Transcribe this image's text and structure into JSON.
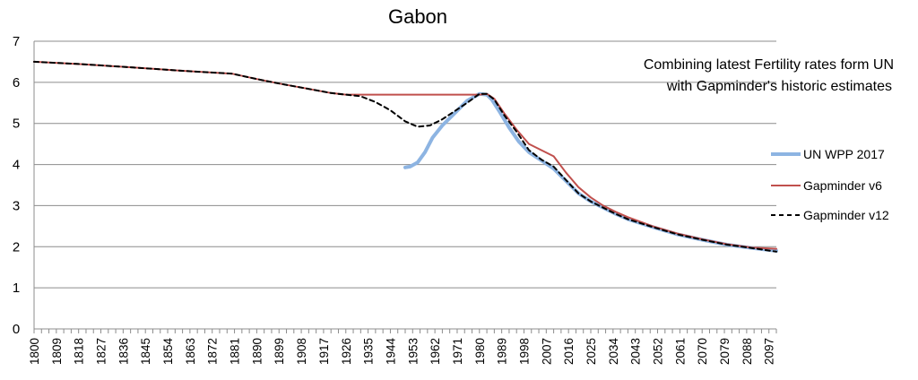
{
  "chart_data": {
    "type": "line",
    "title": "Gabon",
    "annotation": [
      "Combining latest Fertility rates form UN",
      "with Gapminder's historic estimates"
    ],
    "xlabel": "",
    "ylabel": "",
    "xlim": [
      1800,
      2100
    ],
    "ylim": [
      0,
      7
    ],
    "y_ticks": [
      0,
      1,
      2,
      3,
      4,
      5,
      6,
      7
    ],
    "x_tick_labels": [
      "1800",
      "1809",
      "1818",
      "1827",
      "1836",
      "1845",
      "1854",
      "1863",
      "1872",
      "1881",
      "1890",
      "1899",
      "1908",
      "1917",
      "1926",
      "1935",
      "1944",
      "1953",
      "1962",
      "1971",
      "1980",
      "1989",
      "1998",
      "2007",
      "2016",
      "2025",
      "2034",
      "2043",
      "2052",
      "2061",
      "2070",
      "2079",
      "2088",
      "2097"
    ],
    "grid": "horizontal",
    "legend_position": "right",
    "series": [
      {
        "name": "UN WPP 2017",
        "color": "#8db4e2",
        "style": "solid",
        "x": [
          1950,
          1952,
          1955,
          1958,
          1961,
          1965,
          1970,
          1975,
          1980,
          1983,
          1985,
          1988,
          1992,
          1996,
          2000,
          2005,
          2010,
          2015,
          2020,
          2025,
          2030,
          2035,
          2040,
          2050,
          2060,
          2070,
          2080,
          2090,
          2100
        ],
        "y": [
          3.93,
          3.95,
          4.05,
          4.3,
          4.65,
          4.95,
          5.25,
          5.55,
          5.72,
          5.7,
          5.58,
          5.3,
          4.9,
          4.55,
          4.3,
          4.1,
          3.9,
          3.6,
          3.3,
          3.1,
          2.95,
          2.8,
          2.67,
          2.48,
          2.3,
          2.17,
          2.05,
          1.97,
          1.9
        ]
      },
      {
        "name": "Gapminder v6",
        "color": "#c0504d",
        "style": "solid",
        "x": [
          1800,
          1820,
          1840,
          1860,
          1880,
          1890,
          1900,
          1910,
          1920,
          1926,
          1935,
          1944,
          1953,
          1962,
          1971,
          1980,
          1983,
          1986,
          1990,
          1995,
          2000,
          2005,
          2010,
          2015,
          2020,
          2025,
          2030,
          2035,
          2040,
          2050,
          2060,
          2070,
          2080,
          2090,
          2100
        ],
        "y": [
          6.5,
          6.44,
          6.36,
          6.28,
          6.21,
          6.08,
          5.96,
          5.85,
          5.74,
          5.7,
          5.7,
          5.7,
          5.7,
          5.7,
          5.7,
          5.7,
          5.72,
          5.6,
          5.25,
          4.85,
          4.5,
          4.35,
          4.2,
          3.8,
          3.45,
          3.2,
          3.0,
          2.85,
          2.72,
          2.5,
          2.32,
          2.18,
          2.06,
          1.98,
          1.95
        ]
      },
      {
        "name": "Gapminder v12",
        "color": "#000000",
        "style": "dashed",
        "x": [
          1800,
          1820,
          1840,
          1860,
          1880,
          1890,
          1900,
          1910,
          1920,
          1926,
          1932,
          1938,
          1944,
          1950,
          1955,
          1960,
          1965,
          1970,
          1975,
          1980,
          1983,
          1986,
          1990,
          1995,
          2000,
          2005,
          2010,
          2015,
          2020,
          2025,
          2030,
          2035,
          2040,
          2050,
          2060,
          2070,
          2080,
          2090,
          2100
        ],
        "y": [
          6.5,
          6.44,
          6.36,
          6.28,
          6.21,
          6.08,
          5.96,
          5.85,
          5.74,
          5.7,
          5.66,
          5.52,
          5.32,
          5.05,
          4.92,
          4.95,
          5.1,
          5.3,
          5.5,
          5.72,
          5.72,
          5.58,
          5.2,
          4.8,
          4.35,
          4.12,
          3.95,
          3.62,
          3.3,
          3.1,
          2.95,
          2.8,
          2.67,
          2.48,
          2.3,
          2.17,
          2.05,
          1.97,
          1.88
        ]
      }
    ]
  }
}
